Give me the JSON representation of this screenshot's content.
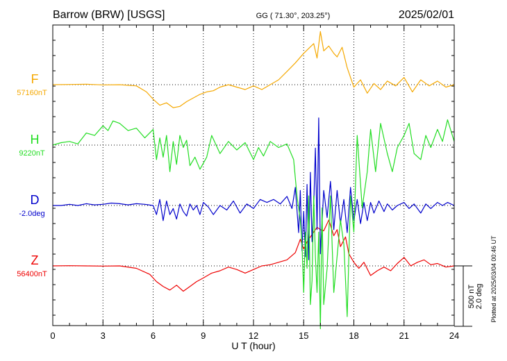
{
  "header": {
    "station": "Barrow (BRW)  [USGS]",
    "coords": "GG ( 71.30°, 203.25°)",
    "date": "2025/02/01"
  },
  "side_note": "Plotted at 2025/03/04 00:46 UT",
  "scale_bar": {
    "line1": "500 nT",
    "line2": "2.0 deg"
  },
  "colors": {
    "F": "#f5a800",
    "H": "#22dd22",
    "D": "#0000cc",
    "Z": "#ee0000"
  },
  "chart_data": {
    "type": "line",
    "xlabel": "U T (hour)",
    "xlim": [
      0,
      24
    ],
    "x_ticks": [
      0,
      3,
      6,
      9,
      12,
      15,
      18,
      21,
      24
    ],
    "grid": true,
    "series": [
      {
        "name": "F",
        "baseline_label": "57160nT",
        "color": "#f5a800",
        "x": [
          0,
          1,
          2,
          3,
          4,
          5,
          5.6,
          6,
          6.4,
          6.8,
          7.2,
          7.6,
          8,
          8.4,
          8.8,
          9.2,
          9.6,
          10,
          10.5,
          11,
          11.5,
          12,
          12.5,
          13,
          13.5,
          14,
          14.5,
          15,
          15.3,
          15.6,
          15.8,
          16,
          16.2,
          16.5,
          16.8,
          17,
          17.3,
          17.6,
          18,
          18.4,
          18.8,
          19.2,
          19.6,
          20,
          20.5,
          21,
          21.5,
          22,
          22.5,
          23,
          23.5,
          24
        ],
        "y": [
          57160,
          57162,
          57164,
          57158,
          57160,
          57150,
          57100,
          57040,
          56990,
          57010,
          56970,
          56980,
          57020,
          57050,
          57080,
          57100,
          57110,
          57140,
          57160,
          57140,
          57120,
          57150,
          57120,
          57160,
          57200,
          57270,
          57340,
          57420,
          57460,
          57500,
          57380,
          57600,
          57440,
          57480,
          57420,
          57390,
          57470,
          57300,
          57140,
          57200,
          57090,
          57170,
          57120,
          57190,
          57150,
          57220,
          57100,
          57200,
          57150,
          57190,
          57140,
          57160
        ]
      },
      {
        "name": "H",
        "baseline_label": "9220nT",
        "color": "#22dd22",
        "x": [
          0,
          0.5,
          1,
          1.5,
          2,
          2.5,
          3,
          3.3,
          3.6,
          4,
          4.5,
          5,
          5.5,
          6,
          6.2,
          6.4,
          6.6,
          6.8,
          7,
          7.2,
          7.4,
          7.6,
          7.8,
          8,
          8.2,
          8.5,
          8.8,
          9.2,
          9.5,
          10,
          10.5,
          11,
          11.5,
          12,
          12.3,
          12.6,
          13,
          13.5,
          14,
          14.4,
          14.6,
          14.8,
          14.9,
          15,
          15.1,
          15.2,
          15.3,
          15.4,
          15.5,
          15.6,
          15.7,
          15.8,
          15.9,
          16,
          16.1,
          16.2,
          16.4,
          16.6,
          16.8,
          17,
          17.2,
          17.4,
          17.6,
          17.8,
          18,
          18.2,
          18.5,
          18.8,
          19,
          19.3,
          19.6,
          20,
          20.3,
          20.6,
          21,
          21.3,
          21.6,
          22,
          22.3,
          22.6,
          23,
          23.3,
          23.6,
          24
        ],
        "y": [
          9220,
          9240,
          9250,
          9230,
          9320,
          9300,
          9380,
          9340,
          9420,
          9400,
          9340,
          9360,
          9280,
          9350,
          9100,
          9280,
          9120,
          9300,
          9000,
          9250,
          9060,
          9300,
          9200,
          9260,
          9050,
          9120,
          9020,
          9120,
          9300,
          9150,
          9250,
          9180,
          9240,
          9100,
          9200,
          9130,
          9250,
          9200,
          9230,
          9100,
          8800,
          8600,
          8400,
          8000,
          8500,
          8200,
          8800,
          7900,
          8100,
          8800,
          8300,
          8000,
          8500,
          7700,
          8700,
          7900,
          8200,
          8800,
          8000,
          8300,
          8600,
          8400,
          7800,
          8800,
          8500,
          9300,
          8700,
          9000,
          9350,
          9000,
          9400,
          9150,
          9000,
          9200,
          9300,
          9400,
          9150,
          9100,
          9300,
          9200,
          9350,
          9250,
          9430,
          9250
        ]
      },
      {
        "name": "D",
        "baseline_label": "-2.0deg",
        "color": "#0000cc",
        "x": [
          0,
          0.5,
          1,
          1.5,
          2,
          2.5,
          3,
          3.5,
          4,
          4.5,
          5,
          5.5,
          6,
          6.2,
          6.4,
          6.6,
          6.8,
          7,
          7.2,
          7.4,
          7.6,
          7.8,
          8,
          8.2,
          8.4,
          8.6,
          8.8,
          9,
          9.3,
          9.6,
          10,
          10.4,
          10.8,
          11.2,
          11.6,
          12,
          12.4,
          12.8,
          13.2,
          13.6,
          14,
          14.3,
          14.5,
          14.7,
          14.8,
          14.9,
          15,
          15.1,
          15.2,
          15.3,
          15.4,
          15.5,
          15.6,
          15.7,
          15.8,
          15.9,
          16,
          16.2,
          16.4,
          16.6,
          16.8,
          17,
          17.2,
          17.4,
          17.6,
          17.8,
          18,
          18.2,
          18.4,
          18.6,
          18.8,
          19,
          19.2,
          19.5,
          19.8,
          20,
          20.3,
          20.6,
          21,
          21.3,
          21.6,
          22,
          22.3,
          22.6,
          23,
          23.3,
          23.6,
          24
        ],
        "y": [
          -2.0,
          -2.0,
          -1.96,
          -2.0,
          -1.94,
          -1.98,
          -1.96,
          -1.92,
          -1.94,
          -1.98,
          -1.94,
          -1.96,
          -2.0,
          -2.3,
          -1.8,
          -2.5,
          -1.85,
          -2.3,
          -2.1,
          -2.45,
          -1.95,
          -2.2,
          -2.35,
          -1.95,
          -2.15,
          -2.0,
          -2.3,
          -1.9,
          -2.05,
          -2.3,
          -2.0,
          -2.15,
          -1.85,
          -2.25,
          -1.95,
          -2.1,
          -1.8,
          -1.9,
          -1.8,
          -1.95,
          -1.7,
          -2.1,
          -1.4,
          -2.9,
          -1.5,
          -3.5,
          -2.2,
          -3.7,
          -1.3,
          -3.8,
          -0.9,
          -3.2,
          -2.0,
          -0.1,
          -2.8,
          0.9,
          -3.6,
          -1.5,
          -2.4,
          -1.2,
          -2.8,
          -1.5,
          -2.6,
          -1.8,
          -2.9,
          -1.4,
          -2.5,
          -1.8,
          -2.6,
          -1.9,
          -2.5,
          -1.9,
          -2.25,
          -1.85,
          -2.2,
          -1.95,
          -2.15,
          -2.0,
          -1.9,
          -2.1,
          -1.95,
          -2.25,
          -1.95,
          -2.1,
          -1.9,
          -2.0,
          -1.9,
          -2.0
        ]
      },
      {
        "name": "Z",
        "baseline_label": "56400nT",
        "color": "#ee0000",
        "x": [
          0,
          1,
          2,
          3,
          4,
          5,
          5.8,
          6.2,
          6.6,
          7,
          7.4,
          7.8,
          8.2,
          8.6,
          9,
          9.5,
          10,
          10.5,
          11,
          11.5,
          12,
          12.5,
          13,
          13.5,
          14,
          14.5,
          14.8,
          15,
          15.2,
          15.5,
          15.8,
          16,
          16.2,
          16.5,
          16.8,
          17,
          17.2,
          17.5,
          17.7,
          18,
          18.3,
          18.6,
          19,
          19.4,
          19.8,
          20.2,
          20.6,
          21,
          21.4,
          21.8,
          22.2,
          22.6,
          23,
          23.5,
          24
        ],
        "y": [
          56400,
          56402,
          56400,
          56398,
          56400,
          56380,
          56330,
          56270,
          56230,
          56200,
          56240,
          56190,
          56230,
          56270,
          56300,
          56340,
          56360,
          56390,
          56370,
          56340,
          56370,
          56400,
          56410,
          56430,
          56450,
          56510,
          56620,
          56540,
          56600,
          56660,
          56720,
          56700,
          56690,
          56780,
          56650,
          56700,
          56560,
          56640,
          56500,
          56430,
          56380,
          56430,
          56320,
          56360,
          56390,
          56360,
          56420,
          56470,
          56400,
          56430,
          56450,
          56410,
          56420,
          56390,
          56400
        ]
      }
    ]
  }
}
